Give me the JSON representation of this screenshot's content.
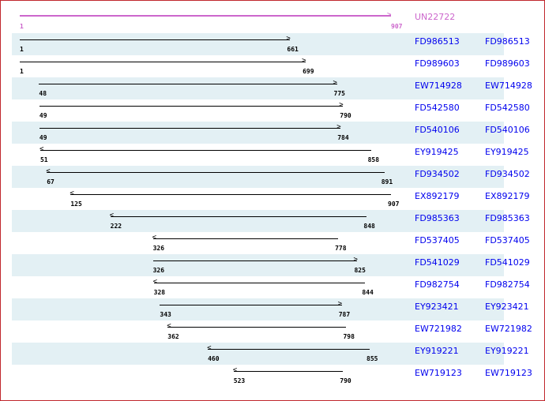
{
  "reference": {
    "id": "UN22722",
    "start": 1,
    "end": 907,
    "color": "#cc66cc"
  },
  "rows": [
    {
      "id": "FD986513",
      "start": 1,
      "end": 661,
      "strand": "+"
    },
    {
      "id": "FD989603",
      "start": 1,
      "end": 699,
      "strand": "+"
    },
    {
      "id": "EW714928",
      "start": 48,
      "end": 775,
      "strand": "+"
    },
    {
      "id": "FD542580",
      "start": 49,
      "end": 790,
      "strand": "+"
    },
    {
      "id": "FD540106",
      "start": 49,
      "end": 784,
      "strand": "+"
    },
    {
      "id": "EY919425",
      "start": 51,
      "end": 858,
      "strand": "-"
    },
    {
      "id": "FD934502",
      "start": 67,
      "end": 891,
      "strand": "-"
    },
    {
      "id": "EX892179",
      "start": 125,
      "end": 907,
      "strand": "-"
    },
    {
      "id": "FD985363",
      "start": 222,
      "end": 848,
      "strand": "-"
    },
    {
      "id": "FD537405",
      "start": 326,
      "end": 778,
      "strand": "-"
    },
    {
      "id": "FD541029",
      "start": 326,
      "end": 825,
      "strand": "+"
    },
    {
      "id": "FD982754",
      "start": 328,
      "end": 844,
      "strand": "-"
    },
    {
      "id": "EY923421",
      "start": 343,
      "end": 787,
      "strand": "+"
    },
    {
      "id": "EW721982",
      "start": 362,
      "end": 798,
      "strand": "-"
    },
    {
      "id": "EY919221",
      "start": 460,
      "end": 855,
      "strand": "-"
    },
    {
      "id": "EW719123",
      "start": 523,
      "end": 790,
      "strand": "-"
    }
  ]
}
